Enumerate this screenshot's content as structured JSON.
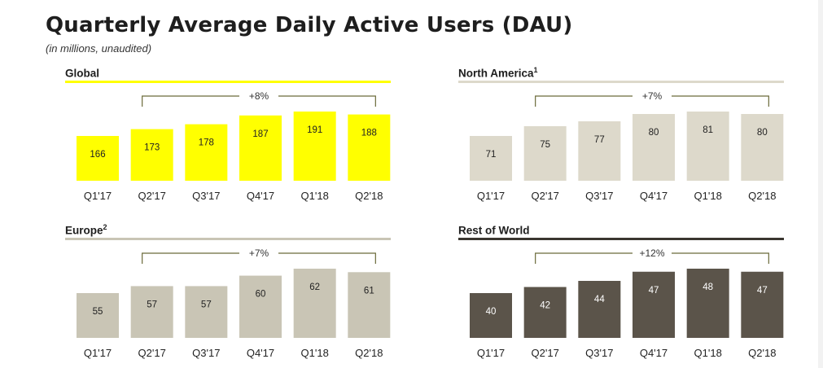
{
  "header": {
    "title": "Quarterly Average Daily Active Users (DAU)",
    "subtitle": "(in millions, unaudited)"
  },
  "chart_data": [
    {
      "type": "bar",
      "title": "Global",
      "title_sup": "",
      "categories": [
        "Q1'17",
        "Q2'17",
        "Q3'17",
        "Q4'17",
        "Q1'18",
        "Q2'18"
      ],
      "values": [
        166,
        173,
        178,
        187,
        191,
        188
      ],
      "growth_label": "+8%",
      "bar_color": "#ffff00",
      "rule_color": "#ffff00",
      "label_color": "#222222"
    },
    {
      "type": "bar",
      "title": "North America",
      "title_sup": "1",
      "categories": [
        "Q1'17",
        "Q2'17",
        "Q3'17",
        "Q4'17",
        "Q1'18",
        "Q2'18"
      ],
      "values": [
        71,
        75,
        77,
        80,
        81,
        80
      ],
      "growth_label": "+7%",
      "bar_color": "#ddd9cb",
      "rule_color": "#ddd9cb",
      "label_color": "#222222"
    },
    {
      "type": "bar",
      "title": "Europe",
      "title_sup": "2",
      "categories": [
        "Q1'17",
        "Q2'17",
        "Q3'17",
        "Q4'17",
        "Q1'18",
        "Q2'18"
      ],
      "values": [
        55,
        57,
        57,
        60,
        62,
        61
      ],
      "growth_label": "+7%",
      "bar_color": "#c9c5b5",
      "rule_color": "#c9c5b5",
      "label_color": "#222222"
    },
    {
      "type": "bar",
      "title": "Rest of World",
      "title_sup": "",
      "categories": [
        "Q1'17",
        "Q2'17",
        "Q3'17",
        "Q4'17",
        "Q1'18",
        "Q2'18"
      ],
      "values": [
        40,
        42,
        44,
        47,
        48,
        47
      ],
      "growth_label": "+12%",
      "bar_color": "#5b544a",
      "rule_color": "#3a3630",
      "label_color": "#ffffff"
    }
  ]
}
